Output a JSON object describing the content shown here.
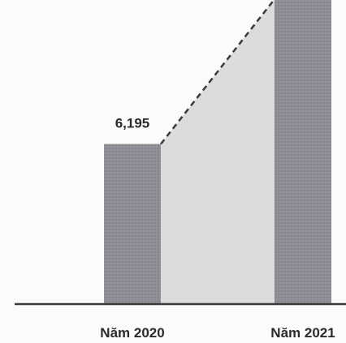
{
  "chart_data": {
    "type": "bar",
    "categories": [
      "Năm 2020",
      "Năm 2021"
    ],
    "values": [
      6195,
      11800
    ],
    "data_labels": [
      "6,195",
      ""
    ],
    "ylim": [
      0,
      11800
    ],
    "grid": false,
    "connector": "dashed-line-with-shaded-area"
  },
  "colors": {
    "bar": "#8d8d95",
    "bar_texture": "#9a9aa2",
    "connector_fill": "#dcdcdf",
    "connector_line": "#3a3a3a",
    "baseline": "#3a3a3a",
    "text": "#2b2b2b",
    "background": "#fbfbf9"
  }
}
